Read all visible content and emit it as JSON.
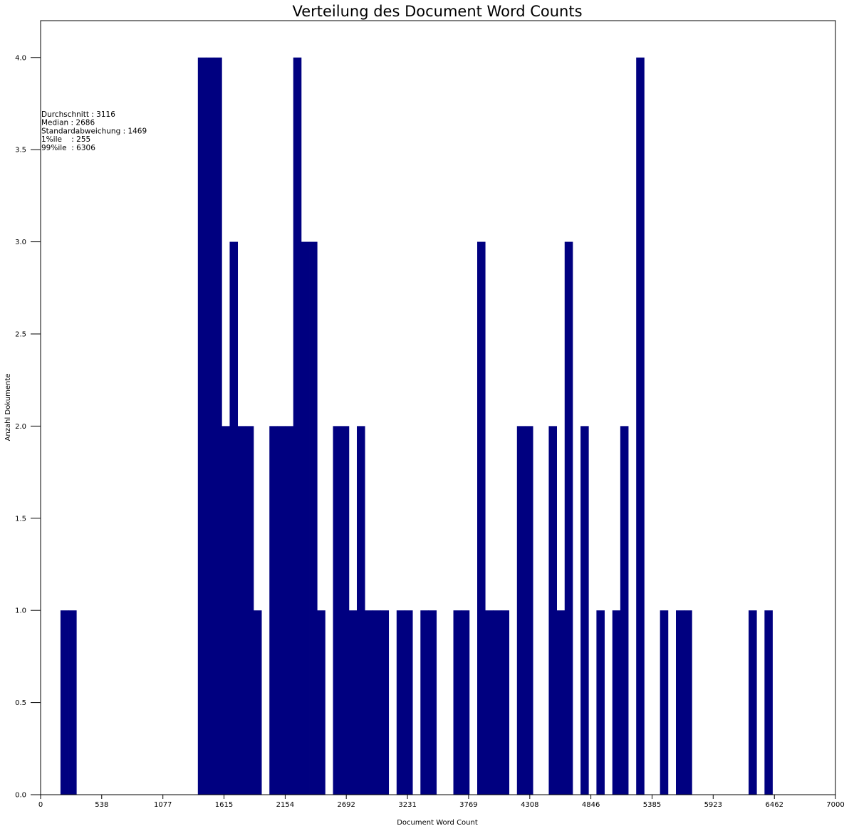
{
  "chart_data": {
    "type": "bar",
    "title": "Verteilung des Document Word Counts",
    "xlabel": "Document Word Count",
    "ylabel": "Anzahl Dokumente",
    "xlim": [
      0,
      7000
    ],
    "ylim": [
      0,
      4.2
    ],
    "x_ticks": [
      0,
      538,
      1077,
      1615,
      2154,
      2692,
      3231,
      3769,
      4308,
      4846,
      5385,
      5923,
      6462,
      7000
    ],
    "x_tick_labels": [
      "0",
      "538",
      "1077",
      "1615",
      "2154",
      "2692",
      "3231",
      "3769",
      "4308",
      "4846",
      "5385",
      "5923",
      "6462",
      "7000"
    ],
    "y_ticks": [
      0,
      0.5,
      1,
      1.5,
      2,
      2.5,
      3,
      3.5,
      4
    ],
    "y_tick_labels": [
      "0.0",
      "0.5",
      "1.0",
      "1.5",
      "2.0",
      "2.5",
      "3.0",
      "3.5",
      "4.0"
    ],
    "bin_width": 70,
    "bins": [
      {
        "x0": 175,
        "count": 1
      },
      {
        "x0": 245,
        "count": 1
      },
      {
        "x0": 1385,
        "count": 4
      },
      {
        "x0": 1455,
        "count": 4
      },
      {
        "x0": 1525,
        "count": 4
      },
      {
        "x0": 1595,
        "count": 2
      },
      {
        "x0": 1665,
        "count": 3
      },
      {
        "x0": 1735,
        "count": 2
      },
      {
        "x0": 1805,
        "count": 2
      },
      {
        "x0": 1875,
        "count": 1
      },
      {
        "x0": 2015,
        "count": 2
      },
      {
        "x0": 2085,
        "count": 2
      },
      {
        "x0": 2155,
        "count": 2
      },
      {
        "x0": 2225,
        "count": 4
      },
      {
        "x0": 2295,
        "count": 3
      },
      {
        "x0": 2365,
        "count": 3
      },
      {
        "x0": 2435,
        "count": 1
      },
      {
        "x0": 2575,
        "count": 2
      },
      {
        "x0": 2645,
        "count": 2
      },
      {
        "x0": 2715,
        "count": 1
      },
      {
        "x0": 2785,
        "count": 2
      },
      {
        "x0": 2855,
        "count": 1
      },
      {
        "x0": 2925,
        "count": 1
      },
      {
        "x0": 2995,
        "count": 1
      },
      {
        "x0": 3135,
        "count": 1
      },
      {
        "x0": 3205,
        "count": 1
      },
      {
        "x0": 3345,
        "count": 1
      },
      {
        "x0": 3415,
        "count": 1
      },
      {
        "x0": 3635,
        "count": 1
      },
      {
        "x0": 3705,
        "count": 1
      },
      {
        "x0": 3845,
        "count": 3
      },
      {
        "x0": 3915,
        "count": 1
      },
      {
        "x0": 3985,
        "count": 1
      },
      {
        "x0": 4055,
        "count": 1
      },
      {
        "x0": 4195,
        "count": 2
      },
      {
        "x0": 4265,
        "count": 2
      },
      {
        "x0": 4475,
        "count": 2
      },
      {
        "x0": 4545,
        "count": 1
      },
      {
        "x0": 4615,
        "count": 3
      },
      {
        "x0": 4755,
        "count": 2
      },
      {
        "x0": 4895,
        "count": 1
      },
      {
        "x0": 5035,
        "count": 1
      },
      {
        "x0": 5105,
        "count": 2
      },
      {
        "x0": 5245,
        "count": 4
      },
      {
        "x0": 5455,
        "count": 1
      },
      {
        "x0": 5595,
        "count": 1
      },
      {
        "x0": 5665,
        "count": 1
      },
      {
        "x0": 6235,
        "count": 1
      },
      {
        "x0": 6375,
        "count": 1
      }
    ],
    "bar_color": "#000080",
    "annotation_lines": [
      "Durchschnitt : 3116",
      "Median : 2686",
      "Standardabweichung : 1469",
      "1%ile    : 255",
      "99%ile  : 6306"
    ],
    "grid": false,
    "legend": "none"
  }
}
